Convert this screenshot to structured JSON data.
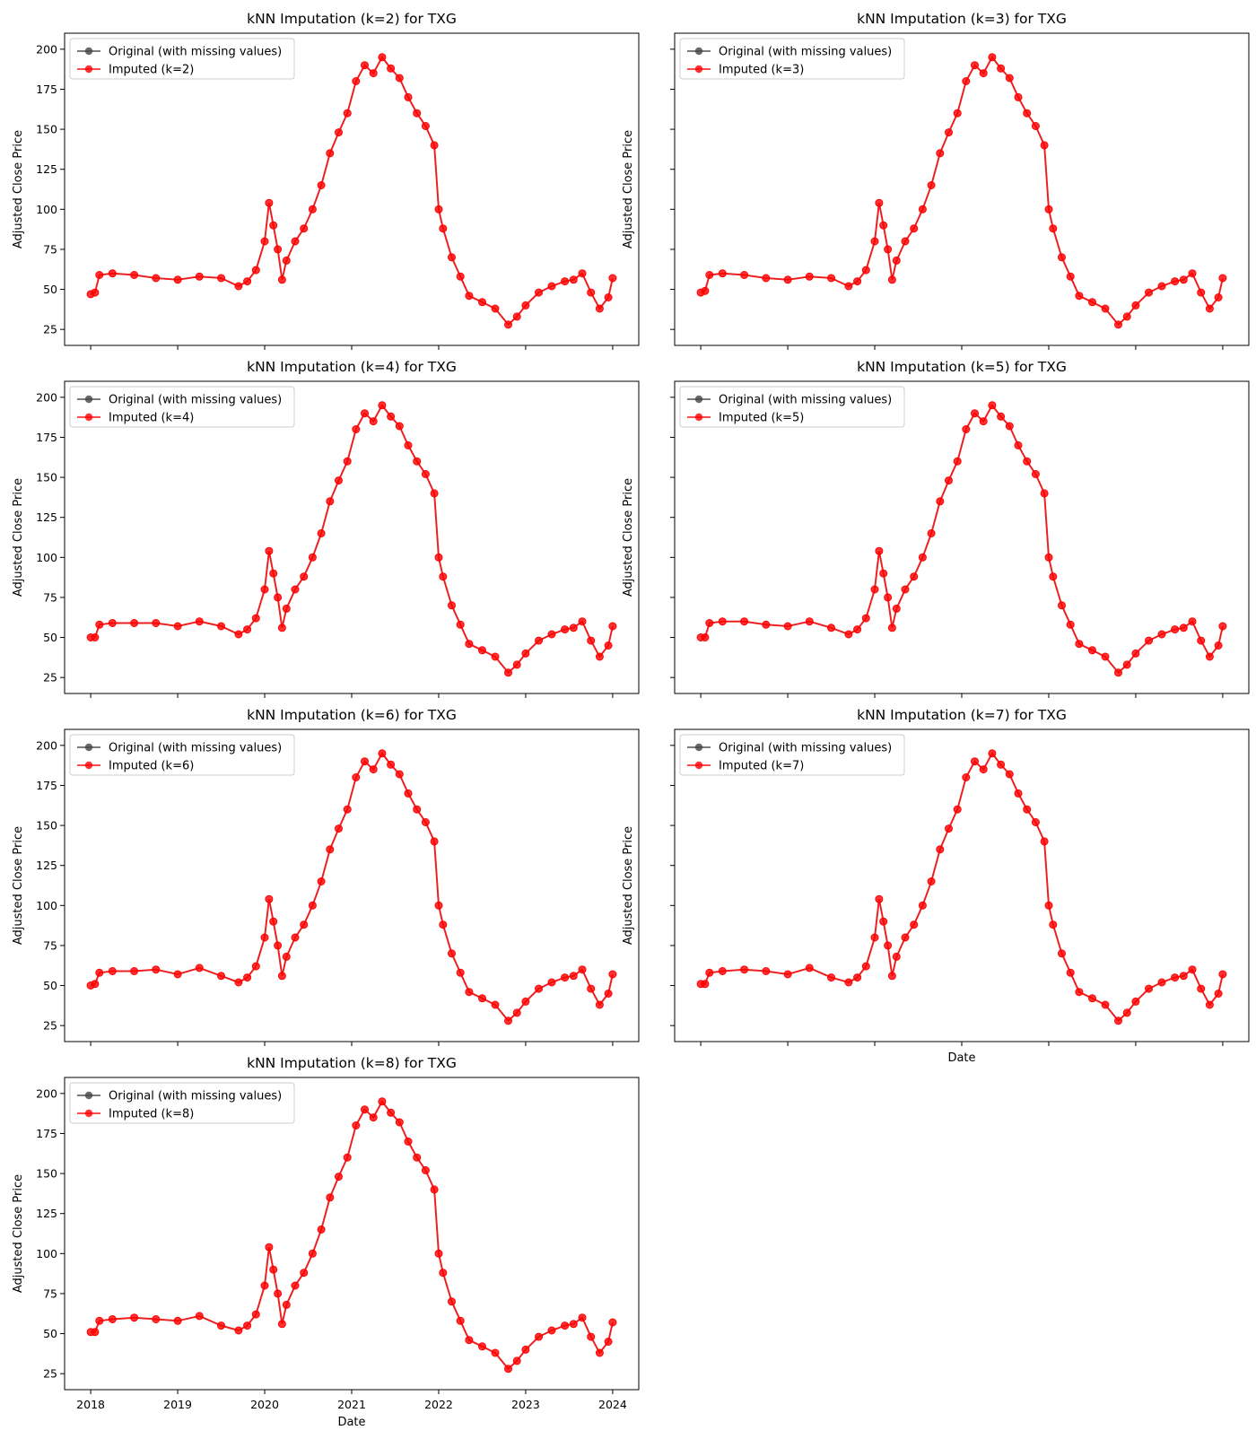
{
  "colors": {
    "original": "#444444",
    "imputed": "#ff0000",
    "axes": "#000000",
    "background": "#ffffff",
    "legend_border": "#cccccc"
  },
  "shared": {
    "ylabel": "Adjusted Close Price",
    "xlabel": "Date",
    "y_ticks": [
      "25",
      "50",
      "75",
      "100",
      "125",
      "150",
      "175",
      "200"
    ],
    "x_ticks": [
      "2018",
      "2019",
      "2020",
      "2021",
      "2022",
      "2023",
      "2024"
    ],
    "legend_original": "Original (with missing values)"
  },
  "chart_data": [
    {
      "type": "line",
      "title": "kNN Imputation (k=2) for TXG",
      "xlabel": "",
      "ylabel": "Adjusted Close Price",
      "ylim": [
        15,
        210
      ],
      "xlim": [
        2017.7,
        2024.3
      ],
      "y_tick_labels_shown": true,
      "x_tick_labels_shown": false,
      "legend": "upper-left",
      "series": [
        {
          "name": "Original (with missing values)",
          "color": "#444444",
          "marker": "circle"
        },
        {
          "name": "Imputed (k=2)",
          "color": "#ff0000",
          "marker": "circle"
        }
      ],
      "x": [
        2018.0,
        2018.05,
        2018.1,
        2018.25,
        2018.5,
        2018.75,
        2019.0,
        2019.25,
        2019.5,
        2019.7,
        2019.8,
        2019.9,
        2020.0,
        2020.05,
        2020.1,
        2020.15,
        2020.2,
        2020.25,
        2020.35,
        2020.45,
        2020.55,
        2020.65,
        2020.75,
        2020.85,
        2020.95,
        2021.05,
        2021.15,
        2021.25,
        2021.35,
        2021.45,
        2021.55,
        2021.65,
        2021.75,
        2021.85,
        2021.95,
        2022.0,
        2022.05,
        2022.15,
        2022.25,
        2022.35,
        2022.5,
        2022.65,
        2022.8,
        2022.9,
        2023.0,
        2023.15,
        2023.3,
        2023.45,
        2023.55,
        2023.65,
        2023.75,
        2023.85,
        2023.95,
        2024.0
      ],
      "values": [
        47,
        48,
        59,
        60,
        59,
        57,
        56,
        58,
        57,
        52,
        55,
        62,
        80,
        104,
        90,
        75,
        56,
        68,
        80,
        88,
        100,
        115,
        135,
        148,
        160,
        180,
        190,
        185,
        195,
        188,
        182,
        170,
        160,
        152,
        140,
        100,
        88,
        70,
        58,
        46,
        42,
        38,
        28,
        33,
        40,
        48,
        52,
        55,
        56,
        60,
        48,
        38,
        45,
        57
      ]
    },
    {
      "type": "line",
      "title": "kNN Imputation (k=3) for TXG",
      "xlabel": "",
      "ylabel": "Adjusted Close Price",
      "ylim": [
        15,
        210
      ],
      "xlim": [
        2017.7,
        2024.3
      ],
      "y_tick_labels_shown": false,
      "x_tick_labels_shown": false,
      "legend": "upper-left",
      "series": [
        {
          "name": "Original (with missing values)",
          "color": "#444444",
          "marker": "circle"
        },
        {
          "name": "Imputed (k=3)",
          "color": "#ff0000",
          "marker": "circle"
        }
      ],
      "x": [
        2018.0,
        2018.05,
        2018.1,
        2018.25,
        2018.5,
        2018.75,
        2019.0,
        2019.25,
        2019.5,
        2019.7,
        2019.8,
        2019.9,
        2020.0,
        2020.05,
        2020.1,
        2020.15,
        2020.2,
        2020.25,
        2020.35,
        2020.45,
        2020.55,
        2020.65,
        2020.75,
        2020.85,
        2020.95,
        2021.05,
        2021.15,
        2021.25,
        2021.35,
        2021.45,
        2021.55,
        2021.65,
        2021.75,
        2021.85,
        2021.95,
        2022.0,
        2022.05,
        2022.15,
        2022.25,
        2022.35,
        2022.5,
        2022.65,
        2022.8,
        2022.9,
        2023.0,
        2023.15,
        2023.3,
        2023.45,
        2023.55,
        2023.65,
        2023.75,
        2023.85,
        2023.95,
        2024.0
      ],
      "values": [
        48,
        49,
        59,
        60,
        59,
        57,
        56,
        58,
        57,
        52,
        55,
        62,
        80,
        104,
        90,
        75,
        56,
        68,
        80,
        88,
        100,
        115,
        135,
        148,
        160,
        180,
        190,
        185,
        195,
        188,
        182,
        170,
        160,
        152,
        140,
        100,
        88,
        70,
        58,
        46,
        42,
        38,
        28,
        33,
        40,
        48,
        52,
        55,
        56,
        60,
        48,
        38,
        45,
        57
      ]
    },
    {
      "type": "line",
      "title": "kNN Imputation (k=4) for TXG",
      "xlabel": "",
      "ylabel": "Adjusted Close Price",
      "ylim": [
        15,
        210
      ],
      "xlim": [
        2017.7,
        2024.3
      ],
      "y_tick_labels_shown": true,
      "x_tick_labels_shown": false,
      "legend": "upper-left",
      "series": [
        {
          "name": "Original (with missing values)",
          "color": "#444444",
          "marker": "circle"
        },
        {
          "name": "Imputed (k=4)",
          "color": "#ff0000",
          "marker": "circle"
        }
      ],
      "x": [
        2018.0,
        2018.05,
        2018.1,
        2018.25,
        2018.5,
        2018.75,
        2019.0,
        2019.25,
        2019.5,
        2019.7,
        2019.8,
        2019.9,
        2020.0,
        2020.05,
        2020.1,
        2020.15,
        2020.2,
        2020.25,
        2020.35,
        2020.45,
        2020.55,
        2020.65,
        2020.75,
        2020.85,
        2020.95,
        2021.05,
        2021.15,
        2021.25,
        2021.35,
        2021.45,
        2021.55,
        2021.65,
        2021.75,
        2021.85,
        2021.95,
        2022.0,
        2022.05,
        2022.15,
        2022.25,
        2022.35,
        2022.5,
        2022.65,
        2022.8,
        2022.9,
        2023.0,
        2023.15,
        2023.3,
        2023.45,
        2023.55,
        2023.65,
        2023.75,
        2023.85,
        2023.95,
        2024.0
      ],
      "values": [
        50,
        50,
        58,
        59,
        59,
        59,
        57,
        60,
        57,
        52,
        55,
        62,
        80,
        104,
        90,
        75,
        56,
        68,
        80,
        88,
        100,
        115,
        135,
        148,
        160,
        180,
        190,
        185,
        195,
        188,
        182,
        170,
        160,
        152,
        140,
        100,
        88,
        70,
        58,
        46,
        42,
        38,
        28,
        33,
        40,
        48,
        52,
        55,
        56,
        60,
        48,
        38,
        45,
        57
      ]
    },
    {
      "type": "line",
      "title": "kNN Imputation (k=5) for TXG",
      "xlabel": "",
      "ylabel": "Adjusted Close Price",
      "ylim": [
        15,
        210
      ],
      "xlim": [
        2017.7,
        2024.3
      ],
      "y_tick_labels_shown": false,
      "x_tick_labels_shown": false,
      "legend": "upper-left",
      "series": [
        {
          "name": "Original (with missing values)",
          "color": "#444444",
          "marker": "circle"
        },
        {
          "name": "Imputed (k=5)",
          "color": "#ff0000",
          "marker": "circle"
        }
      ],
      "x": [
        2018.0,
        2018.05,
        2018.1,
        2018.25,
        2018.5,
        2018.75,
        2019.0,
        2019.25,
        2019.5,
        2019.7,
        2019.8,
        2019.9,
        2020.0,
        2020.05,
        2020.1,
        2020.15,
        2020.2,
        2020.25,
        2020.35,
        2020.45,
        2020.55,
        2020.65,
        2020.75,
        2020.85,
        2020.95,
        2021.05,
        2021.15,
        2021.25,
        2021.35,
        2021.45,
        2021.55,
        2021.65,
        2021.75,
        2021.85,
        2021.95,
        2022.0,
        2022.05,
        2022.15,
        2022.25,
        2022.35,
        2022.5,
        2022.65,
        2022.8,
        2022.9,
        2023.0,
        2023.15,
        2023.3,
        2023.45,
        2023.55,
        2023.65,
        2023.75,
        2023.85,
        2023.95,
        2024.0
      ],
      "values": [
        50,
        50,
        59,
        60,
        60,
        58,
        57,
        60,
        56,
        52,
        55,
        62,
        80,
        104,
        90,
        75,
        56,
        68,
        80,
        88,
        100,
        115,
        135,
        148,
        160,
        180,
        190,
        185,
        195,
        188,
        182,
        170,
        160,
        152,
        140,
        100,
        88,
        70,
        58,
        46,
        42,
        38,
        28,
        33,
        40,
        48,
        52,
        55,
        56,
        60,
        48,
        38,
        45,
        57
      ]
    },
    {
      "type": "line",
      "title": "kNN Imputation (k=6) for TXG",
      "xlabel": "",
      "ylabel": "Adjusted Close Price",
      "ylim": [
        15,
        210
      ],
      "xlim": [
        2017.7,
        2024.3
      ],
      "y_tick_labels_shown": true,
      "x_tick_labels_shown": false,
      "legend": "upper-left",
      "series": [
        {
          "name": "Original (with missing values)",
          "color": "#444444",
          "marker": "circle"
        },
        {
          "name": "Imputed (k=6)",
          "color": "#ff0000",
          "marker": "circle"
        }
      ],
      "x": [
        2018.0,
        2018.05,
        2018.1,
        2018.25,
        2018.5,
        2018.75,
        2019.0,
        2019.25,
        2019.5,
        2019.7,
        2019.8,
        2019.9,
        2020.0,
        2020.05,
        2020.1,
        2020.15,
        2020.2,
        2020.25,
        2020.35,
        2020.45,
        2020.55,
        2020.65,
        2020.75,
        2020.85,
        2020.95,
        2021.05,
        2021.15,
        2021.25,
        2021.35,
        2021.45,
        2021.55,
        2021.65,
        2021.75,
        2021.85,
        2021.95,
        2022.0,
        2022.05,
        2022.15,
        2022.25,
        2022.35,
        2022.5,
        2022.65,
        2022.8,
        2022.9,
        2023.0,
        2023.15,
        2023.3,
        2023.45,
        2023.55,
        2023.65,
        2023.75,
        2023.85,
        2023.95,
        2024.0
      ],
      "values": [
        50,
        51,
        58,
        59,
        59,
        60,
        57,
        61,
        56,
        52,
        55,
        62,
        80,
        104,
        90,
        75,
        56,
        68,
        80,
        88,
        100,
        115,
        135,
        148,
        160,
        180,
        190,
        185,
        195,
        188,
        182,
        170,
        160,
        152,
        140,
        100,
        88,
        70,
        58,
        46,
        42,
        38,
        28,
        33,
        40,
        48,
        52,
        55,
        56,
        60,
        48,
        38,
        45,
        57
      ]
    },
    {
      "type": "line",
      "title": "kNN Imputation (k=7) for TXG",
      "xlabel": "Date",
      "ylabel": "Adjusted Close Price",
      "ylim": [
        15,
        210
      ],
      "xlim": [
        2017.7,
        2024.3
      ],
      "y_tick_labels_shown": false,
      "x_tick_labels_shown": false,
      "legend": "upper-left",
      "series": [
        {
          "name": "Original (with missing values)",
          "color": "#444444",
          "marker": "circle"
        },
        {
          "name": "Imputed (k=7)",
          "color": "#ff0000",
          "marker": "circle"
        }
      ],
      "x": [
        2018.0,
        2018.05,
        2018.1,
        2018.25,
        2018.5,
        2018.75,
        2019.0,
        2019.25,
        2019.5,
        2019.7,
        2019.8,
        2019.9,
        2020.0,
        2020.05,
        2020.1,
        2020.15,
        2020.2,
        2020.25,
        2020.35,
        2020.45,
        2020.55,
        2020.65,
        2020.75,
        2020.85,
        2020.95,
        2021.05,
        2021.15,
        2021.25,
        2021.35,
        2021.45,
        2021.55,
        2021.65,
        2021.75,
        2021.85,
        2021.95,
        2022.0,
        2022.05,
        2022.15,
        2022.25,
        2022.35,
        2022.5,
        2022.65,
        2022.8,
        2022.9,
        2023.0,
        2023.15,
        2023.3,
        2023.45,
        2023.55,
        2023.65,
        2023.75,
        2023.85,
        2023.95,
        2024.0
      ],
      "values": [
        51,
        51,
        58,
        59,
        60,
        59,
        57,
        61,
        55,
        52,
        55,
        62,
        80,
        104,
        90,
        75,
        56,
        68,
        80,
        88,
        100,
        115,
        135,
        148,
        160,
        180,
        190,
        185,
        195,
        188,
        182,
        170,
        160,
        152,
        140,
        100,
        88,
        70,
        58,
        46,
        42,
        38,
        28,
        33,
        40,
        48,
        52,
        55,
        56,
        60,
        48,
        38,
        45,
        57
      ]
    },
    {
      "type": "line",
      "title": "kNN Imputation (k=8) for TXG",
      "xlabel": "Date",
      "ylabel": "Adjusted Close Price",
      "ylim": [
        15,
        210
      ],
      "xlim": [
        2017.7,
        2024.3
      ],
      "y_tick_labels_shown": true,
      "x_tick_labels_shown": true,
      "legend": "upper-left",
      "series": [
        {
          "name": "Original (with missing values)",
          "color": "#444444",
          "marker": "circle"
        },
        {
          "name": "Imputed (k=8)",
          "color": "#ff0000",
          "marker": "circle"
        }
      ],
      "x": [
        2018.0,
        2018.05,
        2018.1,
        2018.25,
        2018.5,
        2018.75,
        2019.0,
        2019.25,
        2019.5,
        2019.7,
        2019.8,
        2019.9,
        2020.0,
        2020.05,
        2020.1,
        2020.15,
        2020.2,
        2020.25,
        2020.35,
        2020.45,
        2020.55,
        2020.65,
        2020.75,
        2020.85,
        2020.95,
        2021.05,
        2021.15,
        2021.25,
        2021.35,
        2021.45,
        2021.55,
        2021.65,
        2021.75,
        2021.85,
        2021.95,
        2022.0,
        2022.05,
        2022.15,
        2022.25,
        2022.35,
        2022.5,
        2022.65,
        2022.8,
        2022.9,
        2023.0,
        2023.15,
        2023.3,
        2023.45,
        2023.55,
        2023.65,
        2023.75,
        2023.85,
        2023.95,
        2024.0
      ],
      "values": [
        51,
        51,
        58,
        59,
        60,
        59,
        58,
        61,
        55,
        52,
        55,
        62,
        80,
        104,
        90,
        75,
        56,
        68,
        80,
        88,
        100,
        115,
        135,
        148,
        160,
        180,
        190,
        185,
        195,
        188,
        182,
        170,
        160,
        152,
        140,
        100,
        88,
        70,
        58,
        46,
        42,
        38,
        28,
        33,
        40,
        48,
        52,
        55,
        56,
        60,
        48,
        38,
        45,
        57
      ]
    }
  ]
}
